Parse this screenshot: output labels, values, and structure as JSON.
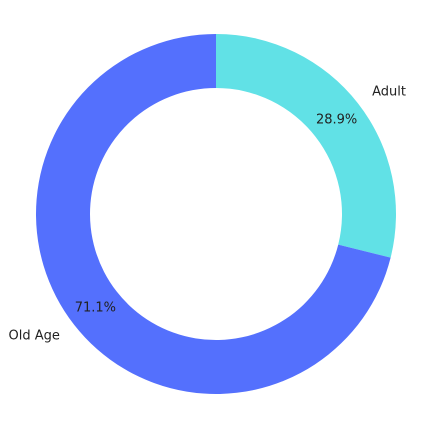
{
  "chart_data": {
    "type": "pie",
    "donut": true,
    "categories": [
      "Adult",
      "Old Age"
    ],
    "values": [
      28.9,
      71.1
    ],
    "value_labels": [
      "28.9%",
      "71.1%"
    ],
    "colors": [
      "#61e1e6",
      "#5470fd"
    ],
    "start": "top",
    "direction": "clockwise",
    "grid": false,
    "legend": "none"
  }
}
